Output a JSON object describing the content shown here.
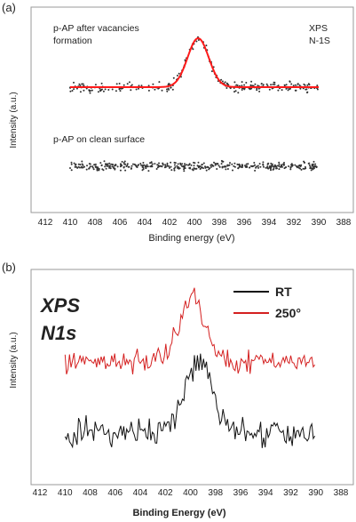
{
  "chart_data": [
    {
      "panel_label": "(a)",
      "type": "scatter",
      "xlabel": "Binding energy (eV)",
      "ylabel": "Intensity (a.u.)",
      "xlim": [
        412,
        388
      ],
      "x_ticks": [
        "412",
        "410",
        "408",
        "406",
        "404",
        "402",
        "400",
        "398",
        "396",
        "394",
        "392",
        "390",
        "388"
      ],
      "corner_labels": [
        "XPS",
        "N-1S"
      ],
      "traces": [
        {
          "name": "p-AP after vacancies formation",
          "label_lines": [
            "p-AP after vacancies",
            "formation"
          ],
          "color": "#ff1a1a",
          "points_color": "#333333",
          "fit": {
            "baseline": 0.0,
            "center": 399.7,
            "amplitude": 1.0,
            "width": 0.85
          },
          "points_noise": 0.08
        },
        {
          "name": "p-AP on clean surface",
          "label_lines": [
            "p-AP on clean surface"
          ],
          "color": "#333333",
          "points_noise": 0.13
        }
      ],
      "x_range_data": [
        410,
        390
      ]
    },
    {
      "panel_label": "(b)",
      "type": "line",
      "xlabel": "Binding Energy (eV)",
      "ylabel": "Intensity (a.u.)",
      "xlim": [
        412,
        388
      ],
      "x_ticks": [
        "412",
        "410",
        "408",
        "406",
        "404",
        "402",
        "400",
        "398",
        "396",
        "394",
        "392",
        "390",
        "388"
      ],
      "title_lines": [
        "XPS",
        "N1s"
      ],
      "series": [
        {
          "name": "RT",
          "color": "#111111",
          "peak_center": 399.3,
          "peak_height": 1.0,
          "peak_width": 1.1,
          "noise": 0.17
        },
        {
          "name": "250°",
          "color": "#d42020",
          "peak_center": 399.9,
          "peak_height": 1.0,
          "peak_width": 1.0,
          "noise": 0.14
        }
      ],
      "x_range_data": [
        410,
        390
      ]
    }
  ]
}
